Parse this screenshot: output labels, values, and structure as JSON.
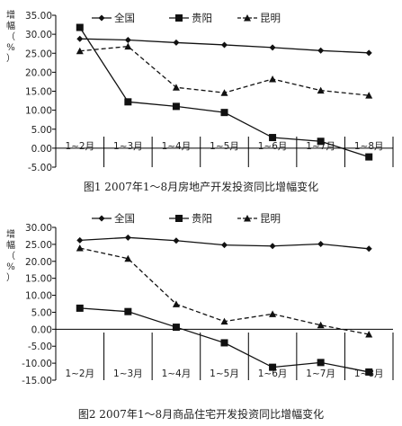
{
  "chart_data": [
    {
      "type": "line",
      "title": "图1 2007年1～8月房地产开发投资同比增幅变化",
      "ylabel": "增幅（%）",
      "ylabel_chars": [
        "增",
        "幅",
        "（",
        "%",
        "）"
      ],
      "categories": [
        "1~2月",
        "1~3月",
        "1~4月",
        "1~5月",
        "1~6月",
        "1~7月",
        "1~8月"
      ],
      "ylim": [
        -5,
        35
      ],
      "yticks": [
        -5,
        0,
        5,
        10,
        15,
        20,
        25,
        30,
        35
      ],
      "ytick_labels": [
        "-5.00",
        "0.00",
        "5.00",
        "10.00",
        "15.00",
        "20.00",
        "25.00",
        "30.00",
        "35.00"
      ],
      "legend_position": "top",
      "series": [
        {
          "name": "全国",
          "marker": "diamond",
          "dash": "solid",
          "values": [
            28.8,
            28.5,
            27.8,
            27.2,
            26.5,
            25.7,
            25.1
          ]
        },
        {
          "name": "贵阳",
          "marker": "square",
          "dash": "solid",
          "values": [
            31.8,
            12.2,
            11.0,
            9.4,
            2.8,
            1.8,
            -2.3
          ]
        },
        {
          "name": "昆明",
          "marker": "triangle",
          "dash": "dashed",
          "values": [
            25.6,
            26.8,
            16.0,
            14.6,
            18.2,
            15.2,
            13.9
          ]
        }
      ]
    },
    {
      "type": "line",
      "title": "图2 2007年1～8月商品住宅开发投资同比增幅变化",
      "ylabel": "增幅（%）",
      "ylabel_chars": [
        "增",
        "幅",
        "（",
        "%",
        "）"
      ],
      "categories": [
        "1~2月",
        "1~3月",
        "1~4月",
        "1~5月",
        "1~6月",
        "1~7月",
        "1~8月"
      ],
      "ylim": [
        -15,
        30
      ],
      "yticks": [
        -15,
        -10,
        -5,
        0,
        5,
        10,
        15,
        20,
        25,
        30
      ],
      "ytick_labels": [
        "-15.00",
        "-10.00",
        "-5.00",
        "0.00",
        "5.00",
        "10.00",
        "15.00",
        "20.00",
        "25.00",
        "30.00"
      ],
      "legend_position": "top",
      "series": [
        {
          "name": "全国",
          "marker": "diamond",
          "dash": "solid",
          "values": [
            26.2,
            27.0,
            26.1,
            24.8,
            24.5,
            25.1,
            23.7
          ]
        },
        {
          "name": "贵阳",
          "marker": "square",
          "dash": "solid",
          "values": [
            6.2,
            5.2,
            0.6,
            -4.0,
            -11.2,
            -9.8,
            -12.6
          ]
        },
        {
          "name": "昆明",
          "marker": "triangle",
          "dash": "dashed",
          "values": [
            23.9,
            20.8,
            7.4,
            2.3,
            4.5,
            1.2,
            -1.5
          ]
        }
      ]
    }
  ]
}
